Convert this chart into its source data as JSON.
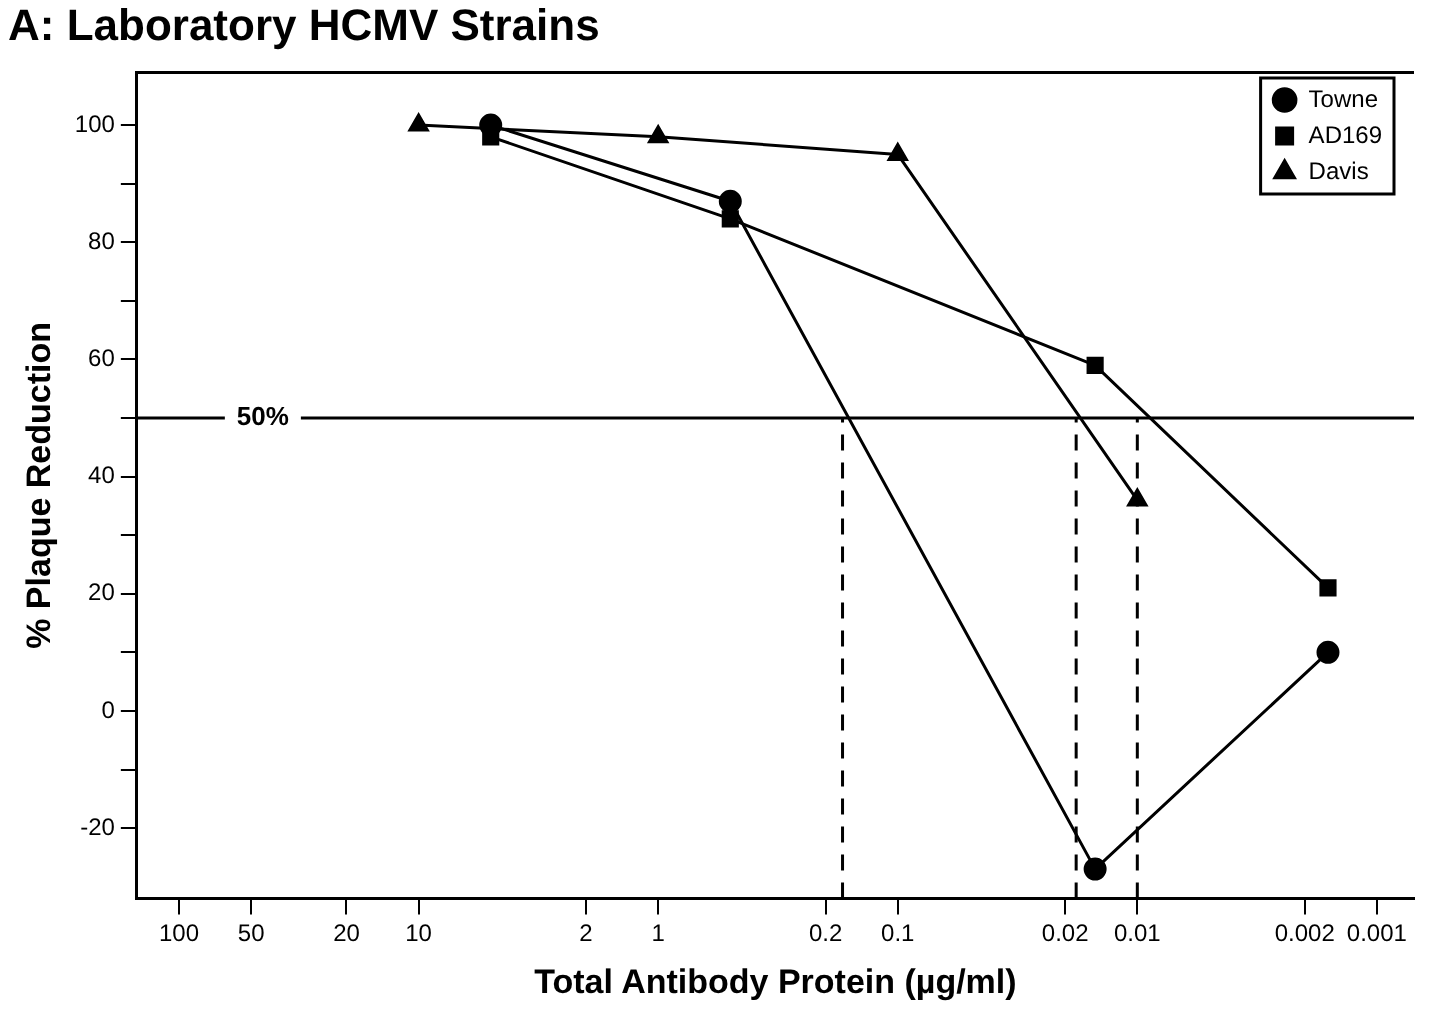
{
  "chart_data": {
    "type": "line",
    "title": "A: Laboratory HCMV Strains",
    "xlabel": "Total Antibody Protein (µg/ml)",
    "ylabel": "% Plaque Reduction",
    "log": "x",
    "xlim": [
      150,
      0.0007
    ],
    "xticks": [
      100,
      50,
      20,
      10,
      2,
      1,
      0.2,
      0.1,
      0.02,
      0.01,
      0.002,
      0.001
    ],
    "ylim": [
      -32,
      109
    ],
    "yticks": [
      -20,
      {
        "value": -10,
        "label": null
      },
      0,
      {
        "value": 10,
        "label": null
      },
      20,
      {
        "value": 30,
        "label": null
      },
      40,
      {
        "value": 50,
        "label": null
      },
      60,
      {
        "value": 70,
        "label": null
      },
      80,
      {
        "value": 90,
        "label": null
      },
      100
    ],
    "grid": false,
    "legend": "top right",
    "line_style": "solid",
    "series": [
      {
        "name": "Towne",
        "color": "#000000",
        "marker": "circle",
        "x": [
          5,
          0.5,
          0.015,
          0.0016
        ],
        "values": [
          100,
          87,
          -27,
          10
        ]
      },
      {
        "name": "AD169",
        "color": "#000000",
        "marker": "square",
        "x": [
          5,
          0.5,
          0.015,
          0.0016
        ],
        "values": [
          98,
          84,
          59,
          21
        ]
      },
      {
        "name": "Davis",
        "color": "#000000",
        "marker": "triangle",
        "x": [
          10,
          1,
          0.1,
          0.01
        ],
        "values": [
          100,
          98,
          95,
          36
        ]
      }
    ],
    "ref_lines": [
      {
        "axis": "y",
        "value": 50,
        "label": "50%",
        "line_style": "solid"
      },
      {
        "axis": "x",
        "value": 0.17,
        "label": null,
        "line_style": "dashed"
      },
      {
        "axis": "x",
        "value": 0.018,
        "label": null,
        "line_style": "dashed"
      },
      {
        "axis": "x",
        "value": 0.01,
        "label": null,
        "line_style": "dashed"
      }
    ]
  }
}
